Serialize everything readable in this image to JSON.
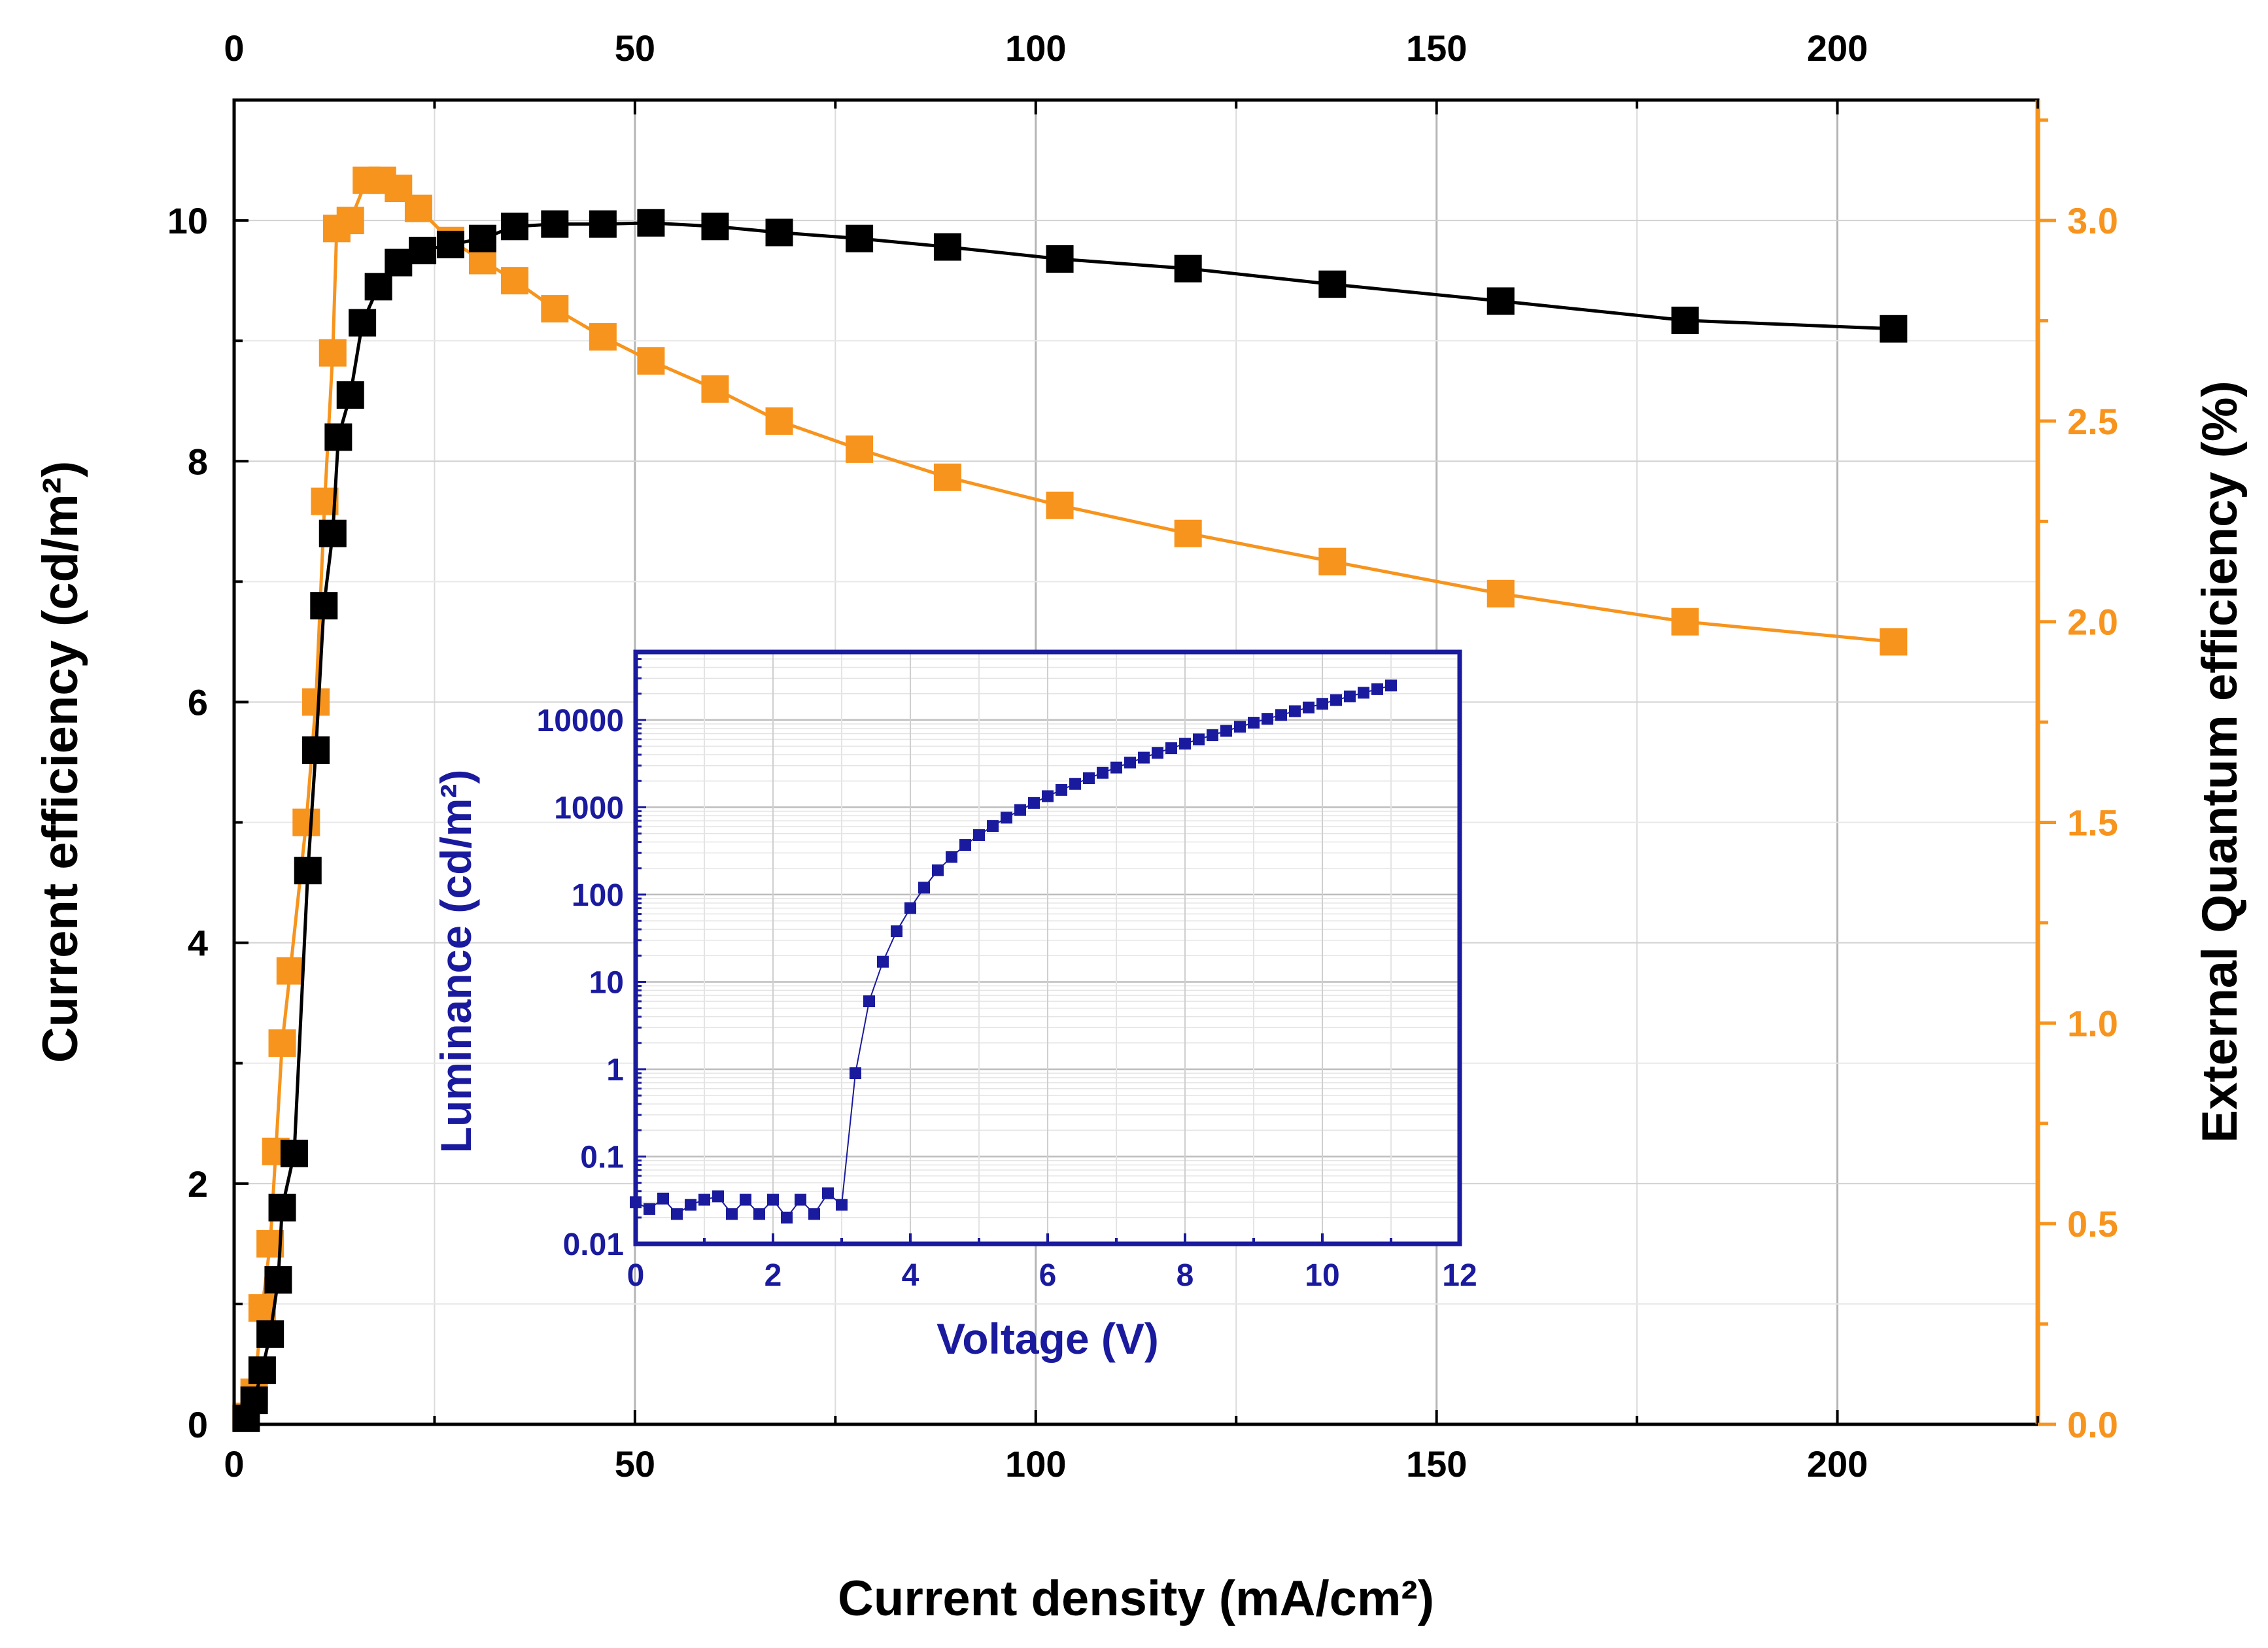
{
  "chart_data": [
    {
      "type": "line",
      "role": "main",
      "xlabel": "Current density (mA/cm²)",
      "ylabel": "Current efficiency (cd/m²)",
      "y2label": "External Quantum efficiency (%)",
      "xlim": [
        0,
        225
      ],
      "ylim": [
        0,
        11
      ],
      "y2lim": [
        0,
        3.3
      ],
      "xticks": [
        0,
        50,
        100,
        150,
        200
      ],
      "xtick_labels": [
        "0",
        "50",
        "100",
        "150",
        "200"
      ],
      "yticks": [
        0,
        2,
        4,
        6,
        8,
        10
      ],
      "ytick_labels": [
        "0",
        "2",
        "4",
        "6",
        "8",
        "10"
      ],
      "y2ticks": [
        0,
        0.5,
        1,
        1.5,
        2,
        2.5,
        3
      ],
      "y2tick_labels": [
        "0.0",
        "0.5",
        "1.0",
        "1.5",
        "2.0",
        "2.5",
        "3.0"
      ],
      "grid": true,
      "series": [
        {
          "name": "Current efficiency",
          "axis": "left",
          "color": "#000000",
          "x": [
            1.5,
            2.5,
            3.5,
            4.5,
            5.5,
            6.0,
            7.5,
            9.2,
            10.2,
            11.2,
            12.3,
            13.0,
            14.5,
            16.0,
            18.0,
            20.5,
            23.5,
            27.0,
            31.0,
            35.0,
            40.0,
            46.0,
            52.0,
            60.0,
            68.0,
            78.0,
            89.0,
            103.0,
            119.0,
            137.0,
            158.0,
            181.0,
            207.0
          ],
          "y": [
            0.05,
            0.2,
            0.45,
            0.75,
            1.2,
            1.8,
            2.25,
            4.6,
            5.6,
            6.8,
            7.4,
            8.2,
            8.55,
            9.15,
            9.45,
            9.65,
            9.75,
            9.8,
            9.85,
            9.95,
            9.97,
            9.97,
            9.98,
            9.95,
            9.9,
            9.85,
            9.78,
            9.68,
            9.6,
            9.47,
            9.33,
            9.17,
            9.1
          ]
        },
        {
          "name": "External Quantum efficiency",
          "axis": "right",
          "color": "#f7941d",
          "x": [
            1.5,
            2.5,
            3.5,
            4.5,
            5.2,
            6.0,
            7.0,
            9.0,
            10.2,
            11.3,
            12.3,
            12.8,
            14.5,
            16.5,
            18.5,
            20.5,
            23.0,
            27.0,
            31.0,
            35.0,
            40.0,
            46.0,
            52.0,
            60.0,
            68.0,
            78.0,
            89.0,
            103.0,
            119.0,
            137.0,
            158.0,
            181.0,
            207.0
          ],
          "y": [
            0.02,
            0.08,
            0.29,
            0.45,
            0.68,
            0.95,
            1.13,
            1.5,
            1.8,
            2.3,
            2.67,
            2.98,
            3.0,
            3.1,
            3.1,
            3.08,
            3.03,
            2.95,
            2.9,
            2.85,
            2.78,
            2.71,
            2.65,
            2.58,
            2.5,
            2.43,
            2.36,
            2.29,
            2.22,
            2.15,
            2.07,
            2.0,
            1.95
          ]
        }
      ],
      "top_xticks": [
        0,
        50,
        100,
        150,
        200
      ],
      "top_xtick_labels": [
        "0",
        "50",
        "100",
        "150",
        "200"
      ]
    },
    {
      "type": "scatter",
      "role": "inset",
      "xlabel": "Voltage (V)",
      "ylabel": "Luminance (cd/m²)",
      "yscale": "log",
      "xlim": [
        0,
        12
      ],
      "ylim": [
        0.01,
        60000
      ],
      "xticks": [
        0,
        2,
        4,
        6,
        8,
        10,
        12
      ],
      "xtick_labels": [
        "0",
        "2",
        "4",
        "6",
        "8",
        "10",
        "12"
      ],
      "yticks": [
        0.01,
        0.1,
        1,
        10,
        100,
        1000,
        10000
      ],
      "ytick_labels": [
        "0.01",
        "0.1",
        "1",
        "10",
        "100",
        "1000",
        "10000"
      ],
      "color": "#1a1a9e",
      "grid": true,
      "series": [
        {
          "name": "Luminance",
          "x": [
            0.0,
            0.2,
            0.4,
            0.6,
            0.8,
            1.0,
            1.2,
            1.4,
            1.6,
            1.8,
            2.0,
            2.2,
            2.4,
            2.6,
            2.8,
            3.0,
            3.2,
            3.4,
            3.6,
            3.8,
            4.0,
            4.2,
            4.4,
            4.6,
            4.8,
            5.0,
            5.2,
            5.4,
            5.6,
            5.8,
            6.0,
            6.2,
            6.4,
            6.6,
            6.8,
            7.0,
            7.2,
            7.4,
            7.6,
            7.8,
            8.0,
            8.2,
            8.4,
            8.6,
            8.8,
            9.0,
            9.2,
            9.4,
            9.6,
            9.8,
            10.0,
            10.2,
            10.4,
            10.6,
            10.8,
            11.0
          ],
          "y": [
            0.03,
            0.025,
            0.033,
            0.022,
            0.028,
            0.032,
            0.035,
            0.022,
            0.032,
            0.022,
            0.032,
            0.02,
            0.032,
            0.022,
            0.038,
            0.028,
            0.9,
            6.0,
            17.0,
            38.0,
            70.0,
            120.0,
            190.0,
            270.0,
            370.0,
            480.0,
            610.0,
            760.0,
            930.0,
            1120.0,
            1340.0,
            1580.0,
            1850.0,
            2150.0,
            2480.0,
            2850.0,
            3250.0,
            3700.0,
            4200.0,
            4750.0,
            5350.0,
            6000.0,
            6700.0,
            7500.0,
            8350.0,
            9300.0,
            10300.0,
            11400.0,
            12600.0,
            13900.0,
            15300.0,
            16900.0,
            18600.0,
            20500.0,
            22500.0,
            24800.0
          ]
        }
      ]
    }
  ]
}
